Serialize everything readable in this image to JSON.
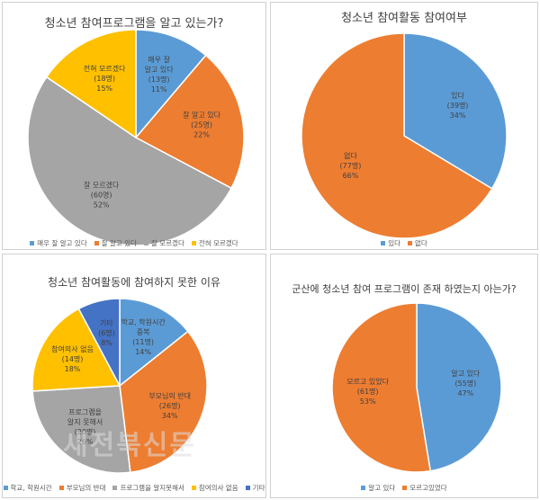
{
  "colors": {
    "blue": "#5B9BD5",
    "orange": "#ED7D31",
    "gray": "#A5A5A5",
    "yellow": "#FFC000",
    "navy": "#4472C4"
  },
  "watermark": "새전북신문",
  "chart_data": [
    {
      "type": "pie",
      "title": "청소년 참여프로그램을 알고 있는가?",
      "categories": [
        "매우 잘 알고 있다",
        "잘 알고 있다",
        "잘 모르겠다",
        "전혀 모르겠다"
      ],
      "values": [
        13,
        25,
        60,
        18
      ],
      "counts": [
        "(13명)",
        "(25명)",
        "(60명)",
        "(18명)"
      ],
      "percents": [
        "11%",
        "22%",
        "52%",
        "15%"
      ],
      "colors": [
        "#5B9BD5",
        "#ED7D31",
        "#A5A5A5",
        "#FFC000"
      ],
      "legend": [
        "매우 잘 알고 있다",
        "잘 알고 있다",
        "잘 모르겠다",
        "전혀 모르겠다"
      ],
      "legend_position": "bottom"
    },
    {
      "type": "pie",
      "title": "청소년 참여활동 참여여부",
      "categories": [
        "있다",
        "없다"
      ],
      "values": [
        39,
        77
      ],
      "counts": [
        "(39명)",
        "(77명)"
      ],
      "percents": [
        "34%",
        "66%"
      ],
      "colors": [
        "#5B9BD5",
        "#ED7D31"
      ],
      "legend": [
        "있다",
        "없다"
      ],
      "legend_position": "bottom"
    },
    {
      "type": "pie",
      "title": "청소년 참여활동에 참여하지 못한 이유",
      "categories": [
        "학교, 학원시간 중복",
        "부모님의 반대",
        "프로그램을 알지 못해서",
        "참여의사 없음",
        "기타"
      ],
      "values": [
        11,
        26,
        20,
        14,
        6
      ],
      "counts": [
        "(11명)",
        "(26명)",
        "(20명)",
        "(14명)",
        "(6명)"
      ],
      "percents": [
        "14%",
        "34%",
        "26%",
        "18%",
        "8%"
      ],
      "colors": [
        "#5B9BD5",
        "#ED7D31",
        "#A5A5A5",
        "#FFC000",
        "#4472C4"
      ],
      "legend": [
        "학교, 학원시간",
        "부모님의 반대",
        "프로그램을 알지못해서",
        "참여의사 없음",
        "기타"
      ],
      "legend_position": "bottom"
    },
    {
      "type": "pie",
      "title": "군산에 청소년 참여 프로그램이 존재 하였는지 아는가?",
      "categories": [
        "알고 있다",
        "모르고 있었다"
      ],
      "values": [
        55,
        61
      ],
      "counts": [
        "(55명)",
        "(61명)"
      ],
      "percents": [
        "47%",
        "53%"
      ],
      "colors": [
        "#5B9BD5",
        "#ED7D31"
      ],
      "legend": [
        "알고 있다",
        "모르고있었다"
      ],
      "legend_position": "bottom"
    }
  ]
}
